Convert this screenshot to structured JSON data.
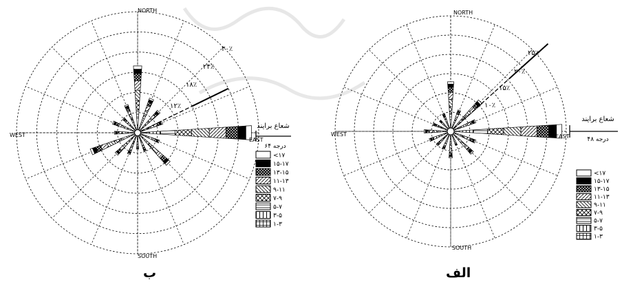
{
  "figure": {
    "panels": [
      {
        "panel_label": "ب",
        "compass": {
          "north": "NORTH",
          "south": "SOUTH",
          "east": "EAST",
          "west": "WEST"
        },
        "ring_labels": [
          "۱۲٪",
          "۱۸٪",
          "۲۴٪",
          "۳۰٪"
        ],
        "sector_label": "شعاع برایند",
        "sector_degree": "۶۴ درجه"
      },
      {
        "panel_label": "الف",
        "compass": {
          "north": "NORTH",
          "south": "SOUTH",
          "east": "EAST",
          "west": "WEST"
        },
        "ring_labels": [
          "۱۰٪",
          "۱۵٪",
          "۲۰٪",
          "۲۵٪"
        ],
        "sector_label": "شعاع برایند",
        "sector_degree": "۴۸ درجه"
      }
    ],
    "legend_items": [
      "<۱۷",
      "۱۵-۱۷",
      "۱۳-۱۵",
      "۱۱-۱۳",
      "۹-۱۱",
      "۷-۹",
      "۵-۷",
      "۳-۵",
      "۱-۳"
    ],
    "colors": {
      "line": "#000000",
      "background": "#ffffff",
      "watermark": "#d4d4d4"
    }
  },
  "chart_data": [
    {
      "type": "rose",
      "name": "ب",
      "categories": [
        "N",
        "NNE",
        "NE",
        "ENE",
        "E",
        "ESE",
        "SE",
        "SSE",
        "S",
        "SSW",
        "SW",
        "WSW",
        "W",
        "WNW",
        "NW",
        "NNW"
      ],
      "speed_classes": [
        "<۱۷",
        "۱۵-۱۷",
        "۱۳-۱۵",
        "۱۱-۱۳",
        "۹-۱۱",
        "۷-۹",
        "۵-۷",
        "۳-۵",
        "۱-۳"
      ],
      "frequency_percent": [
        19,
        10,
        8,
        7,
        33,
        6,
        12,
        5,
        4,
        6,
        8,
        14,
        6,
        7,
        5,
        8
      ],
      "rlim_percent": [
        0,
        36
      ],
      "rings_percent": [
        6,
        12,
        18,
        24,
        30,
        36
      ],
      "resultant_vector": {
        "direction_deg": 64,
        "length_percent": 30
      },
      "grid": true
    },
    {
      "type": "rose",
      "name": "الف",
      "categories": [
        "N",
        "NNE",
        "NE",
        "ENE",
        "E",
        "ESE",
        "SE",
        "SSE",
        "S",
        "SSW",
        "SW",
        "WSW",
        "W",
        "WNW",
        "NW",
        "NNW"
      ],
      "speed_classes": [
        "<۱۷",
        "۱۵-۱۷",
        "۱۳-۱۵",
        "۱۱-۱۳",
        "۹-۱۱",
        "۷-۹",
        "۵-۷",
        "۳-۵",
        "۱-۳"
      ],
      "frequency_percent": [
        12,
        5,
        10,
        6,
        28,
        6,
        7,
        3,
        6,
        4,
        4,
        5,
        6,
        4,
        3,
        4
      ],
      "rlim_percent": [
        0,
        30
      ],
      "rings_percent": [
        5,
        10,
        15,
        20,
        25,
        30
      ],
      "resultant_vector": {
        "direction_deg": 48,
        "length_percent": 34
      },
      "grid": true
    }
  ]
}
